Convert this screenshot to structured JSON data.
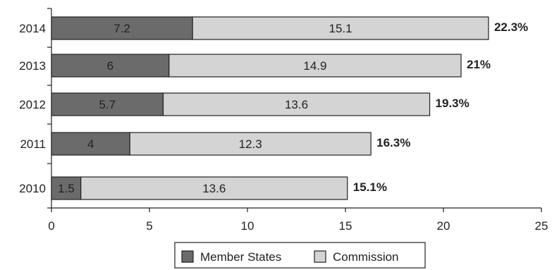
{
  "chart_data": {
    "type": "bar",
    "orientation": "horizontal",
    "stacked": true,
    "categories": [
      "2014",
      "2013",
      "2012",
      "2011",
      "2010"
    ],
    "series": [
      {
        "name": "Member States",
        "values": [
          7.2,
          6,
          5.7,
          4,
          1.5
        ],
        "labels": [
          "7.2",
          "6",
          "5.7",
          "4",
          "1.5"
        ]
      },
      {
        "name": "Commission",
        "values": [
          15.1,
          14.9,
          13.6,
          12.3,
          13.6
        ],
        "labels": [
          "15.1",
          "14.9",
          "13.6",
          "12.3",
          "13.6"
        ]
      }
    ],
    "totals": [
      "22.3%",
      "21%",
      "19.3%",
      "16.3%",
      "15.1%"
    ],
    "xlim": [
      0,
      25
    ],
    "xticks": [
      "0",
      "5",
      "10",
      "15",
      "20",
      "25"
    ],
    "xlabel": "",
    "ylabel": "",
    "title": "",
    "grid": false,
    "legend_position": "bottom",
    "colors": {
      "Member States": "#6b6b6b",
      "Commission": "#d4d4d4",
      "stroke": "#222222"
    }
  }
}
